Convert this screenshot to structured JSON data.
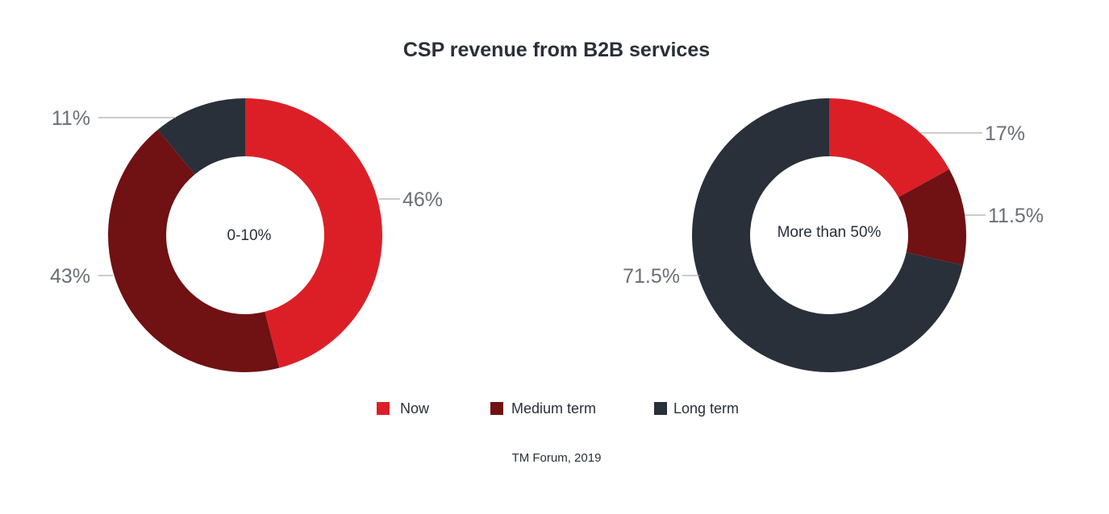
{
  "chart_data": {
    "type": "pie",
    "variant": "donut",
    "title": "CSP revenue from B2B services",
    "series_names": [
      "Now",
      "Medium term",
      "Long term"
    ],
    "colors": [
      "#dc1f26",
      "#701113",
      "#29303a"
    ],
    "donuts": [
      {
        "center_label": "0-10%",
        "values": [
          46,
          43,
          11
        ],
        "labels": [
          "46%",
          "43%",
          "11%"
        ]
      },
      {
        "center_label": "More than 50%",
        "values": [
          17,
          11.5,
          71.5
        ],
        "labels": [
          "17%",
          "11.5%",
          "71.5%"
        ]
      }
    ],
    "legend": {
      "position": "bottom-center",
      "items": [
        {
          "label": "Now",
          "color": "#dc1f26"
        },
        {
          "label": "Medium term",
          "color": "#701113"
        },
        {
          "label": "Long term",
          "color": "#29303a"
        }
      ]
    },
    "source": "TM Forum, 2019"
  }
}
